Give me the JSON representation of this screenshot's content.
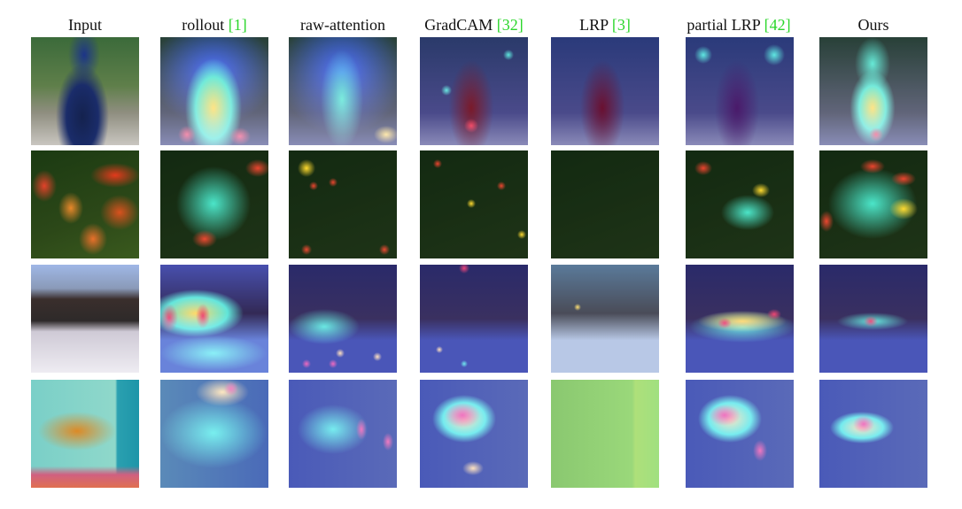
{
  "figure": {
    "columns": [
      {
        "name": "Input",
        "ref": ""
      },
      {
        "name": "rollout ",
        "ref": "[1]"
      },
      {
        "name": "raw-attention",
        "ref": ""
      },
      {
        "name": "GradCAM ",
        "ref": "[32]"
      },
      {
        "name": "LRP ",
        "ref": "[3]"
      },
      {
        "name": "partial LRP ",
        "ref": "[42]"
      },
      {
        "name": "Ours",
        "ref": ""
      }
    ],
    "rows": [
      {
        "subject": "peacock",
        "bg": [
          "#3d5a3a",
          "#9aa08e",
          "#1c2a5c"
        ]
      },
      {
        "subject": "goldfish-tulips",
        "bg": [
          "#1b3a12",
          "#c2361c",
          "#e0752a"
        ]
      },
      {
        "subject": "sled-dogs-snow",
        "bg": [
          "#9fb7e6",
          "#2b2a2c",
          "#e8e6ec"
        ]
      },
      {
        "subject": "goldfish-tank",
        "bg": [
          "#62b7c0",
          "#d88a2e",
          "#e36a7c"
        ]
      }
    ],
    "colors": {
      "reference": "#2bd62b",
      "heat_low": "#1a34ff",
      "heat_mid": "#38e0c4",
      "heat_high": "#ffd21e",
      "heat_peak": "#e81e1e"
    }
  }
}
